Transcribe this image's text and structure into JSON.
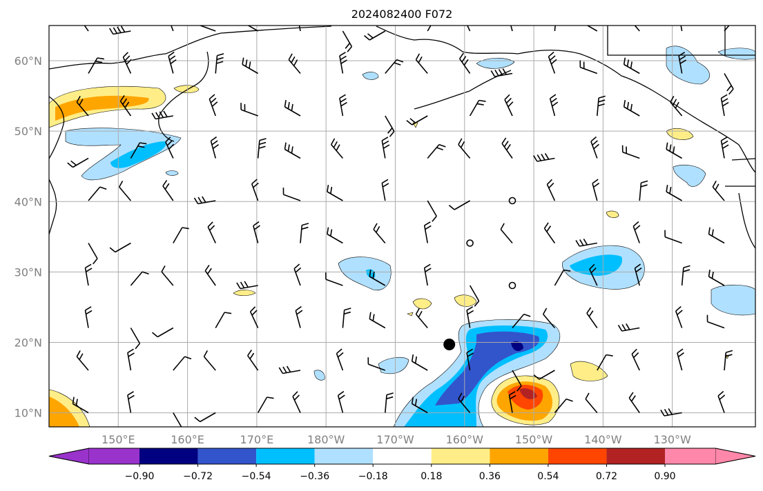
{
  "title": "2024082400 F072",
  "map": {
    "lon_range": [
      140,
      242
    ],
    "lat_range": [
      8,
      65
    ],
    "grid_lines": true,
    "lat_ticks": [
      {
        "lat": 60,
        "label": "60°N"
      },
      {
        "lat": 50,
        "label": "50°N"
      },
      {
        "lat": 40,
        "label": "40°N"
      },
      {
        "lat": 30,
        "label": "30°N"
      },
      {
        "lat": 20,
        "label": "20°N"
      },
      {
        "lat": 10,
        "label": "10°N"
      }
    ],
    "lon_ticks": [
      {
        "lon": 150,
        "label": "150°E"
      },
      {
        "lon": 160,
        "label": "160°E"
      },
      {
        "lon": 170,
        "label": "170°E"
      },
      {
        "lon": 180,
        "label": "180°W"
      },
      {
        "lon": 190,
        "label": "170°W"
      },
      {
        "lon": 200,
        "label": "160°W"
      },
      {
        "lon": 210,
        "label": "150°W"
      },
      {
        "lon": 220,
        "label": "140°W"
      },
      {
        "lon": 230,
        "label": "130°W"
      }
    ],
    "marker": {
      "lon": 197.8,
      "lat": 19.7,
      "color": "#000000"
    }
  },
  "colorbar": {
    "extend": "both",
    "colors": [
      "#9933cc",
      "#000080",
      "#3355cc",
      "#00bfff",
      "#b0e0ff",
      "#ffffff",
      "#ffee88",
      "#ffa500",
      "#ff4500",
      "#b22222",
      "#ff88aa"
    ],
    "tick_labels": [
      "−0.90",
      "−0.72",
      "−0.54",
      "−0.36",
      "−0.18",
      "0.18",
      "0.36",
      "0.54",
      "0.72",
      "0.90"
    ]
  }
}
